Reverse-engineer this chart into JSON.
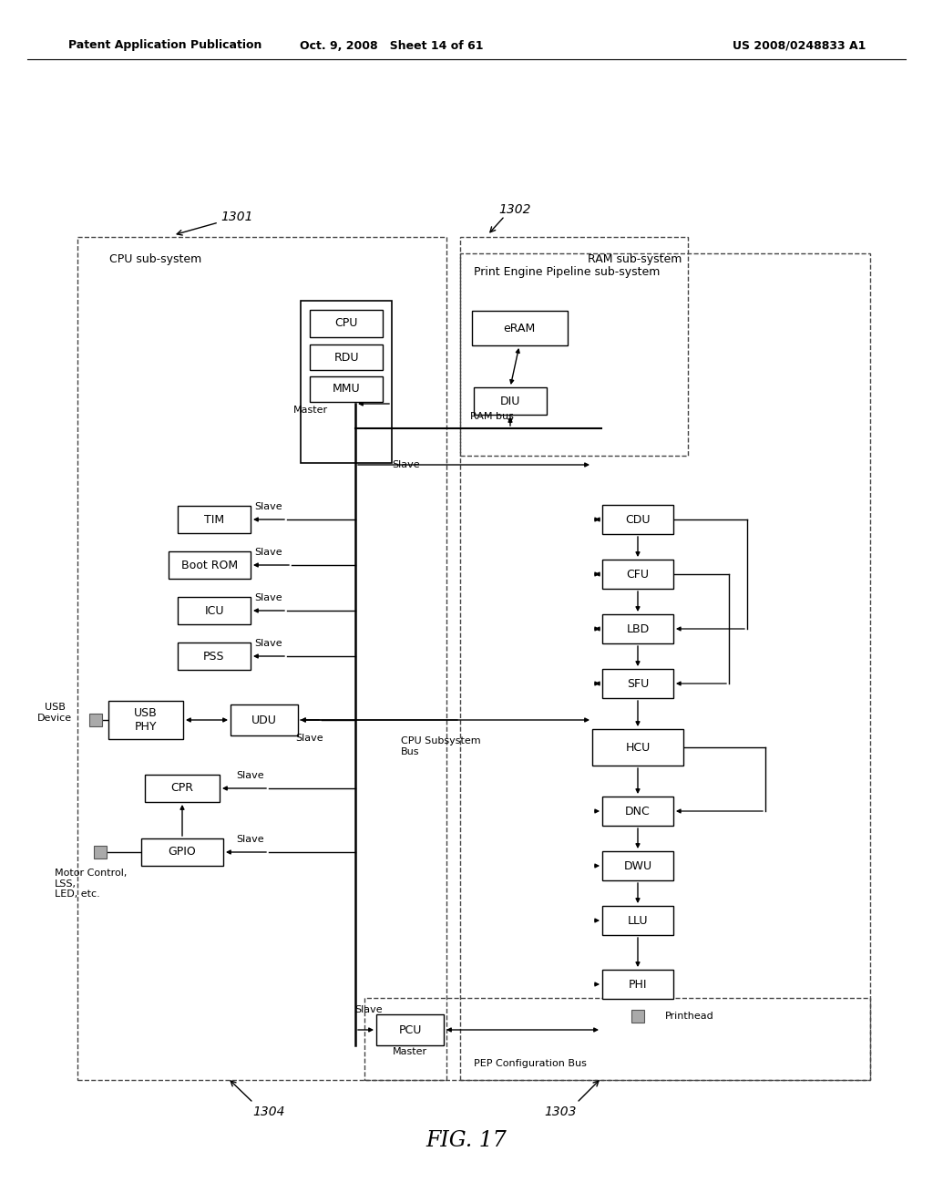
{
  "header_left": "Patent Application Publication",
  "header_mid": "Oct. 9, 2008   Sheet 14 of 61",
  "header_right": "US 2008/0248833 A1",
  "figure_label": "FIG. 17",
  "ref_1301": "1301",
  "ref_1302": "1302",
  "ref_1303": "1303",
  "ref_1304": "1304",
  "label_cpu_sub": "CPU sub-system",
  "label_ram_sub": "RAM sub-system",
  "label_pep_sub": "Print Engine Pipeline sub-system",
  "label_cpu_bus": "CPU Subsystem\nBus",
  "label_ram_bus": "RAM bus",
  "label_pep_bus": "PEP Configuration Bus",
  "label_printhead": "Printhead",
  "bg_color": "#ffffff",
  "box_color": "#ffffff",
  "box_edge": "#000000",
  "line_color": "#000000",
  "dashed_color": "#444444"
}
